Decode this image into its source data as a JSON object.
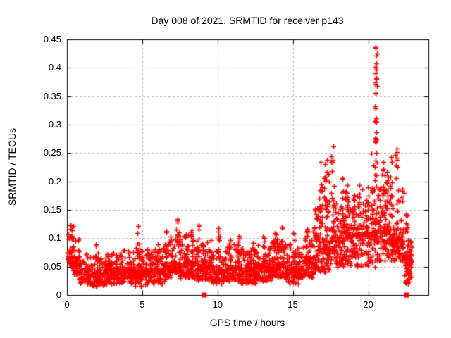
{
  "chart_data": {
    "type": "scatter",
    "title": "Day 008 of 2021, SRMTID for receiver p143",
    "xlabel": "GPS time / hours",
    "ylabel": "SRMTID / TECUs",
    "xlim": [
      0,
      24
    ],
    "ylim": [
      0,
      0.45
    ],
    "xticks": {
      "values": [
        0,
        5,
        10,
        15,
        20
      ],
      "labels": [
        "0",
        "5",
        "10",
        "15",
        "20"
      ]
    },
    "yticks": {
      "values": [
        0,
        0.05,
        0.1,
        0.15,
        0.2,
        0.25,
        0.3,
        0.35,
        0.4,
        0.45
      ],
      "labels": [
        "0",
        "0.05",
        "0.1",
        "0.15",
        "0.2",
        "0.25",
        "0.3",
        "0.35",
        "0.4",
        "0.45"
      ]
    },
    "grid": {
      "show": true,
      "color": "#b9b9b9",
      "dash": [
        3,
        3
      ]
    },
    "axis_color": "#000000",
    "background": "#ffffff",
    "legend": "none",
    "marker": {
      "symbol": "plus",
      "color": "#ff0000",
      "size": 7
    },
    "seed": 20210108,
    "band_profile": [
      {
        "x0": 0.0,
        "x1": 0.3,
        "n": 30,
        "ymin": 0.05,
        "ymode": 0.075,
        "ymax": 0.125
      },
      {
        "x0": 0.3,
        "x1": 0.8,
        "n": 55,
        "ymin": 0.035,
        "ymode": 0.06,
        "ymax": 0.1
      },
      {
        "x0": 0.8,
        "x1": 1.5,
        "n": 75,
        "ymin": 0.02,
        "ymode": 0.045,
        "ymax": 0.08
      },
      {
        "x0": 1.5,
        "x1": 2.5,
        "n": 105,
        "ymin": 0.015,
        "ymode": 0.038,
        "ymax": 0.07
      },
      {
        "x0": 2.5,
        "x1": 3.5,
        "n": 105,
        "ymin": 0.02,
        "ymode": 0.045,
        "ymax": 0.075
      },
      {
        "x0": 3.5,
        "x1": 4.5,
        "n": 105,
        "ymin": 0.02,
        "ymode": 0.042,
        "ymax": 0.08
      },
      {
        "x0": 4.5,
        "x1": 5.5,
        "n": 105,
        "ymin": 0.015,
        "ymode": 0.04,
        "ymax": 0.085
      },
      {
        "x0": 5.5,
        "x1": 6.5,
        "n": 105,
        "ymin": 0.02,
        "ymode": 0.045,
        "ymax": 0.085
      },
      {
        "x0": 6.5,
        "x1": 7.5,
        "n": 105,
        "ymin": 0.03,
        "ymode": 0.055,
        "ymax": 0.105
      },
      {
        "x0": 7.5,
        "x1": 8.5,
        "n": 105,
        "ymin": 0.03,
        "ymode": 0.055,
        "ymax": 0.11
      },
      {
        "x0": 8.5,
        "x1": 9.5,
        "n": 100,
        "ymin": 0.025,
        "ymode": 0.05,
        "ymax": 0.1
      },
      {
        "x0": 9.5,
        "x1": 10.5,
        "n": 100,
        "ymin": 0.02,
        "ymode": 0.042,
        "ymax": 0.08
      },
      {
        "x0": 10.5,
        "x1": 11.5,
        "n": 105,
        "ymin": 0.025,
        "ymode": 0.048,
        "ymax": 0.09
      },
      {
        "x0": 11.5,
        "x1": 12.5,
        "n": 105,
        "ymin": 0.02,
        "ymode": 0.045,
        "ymax": 0.085
      },
      {
        "x0": 12.5,
        "x1": 13.5,
        "n": 105,
        "ymin": 0.025,
        "ymode": 0.05,
        "ymax": 0.09
      },
      {
        "x0": 13.5,
        "x1": 14.5,
        "n": 105,
        "ymin": 0.03,
        "ymode": 0.055,
        "ymax": 0.1
      },
      {
        "x0": 14.5,
        "x1": 15.5,
        "n": 105,
        "ymin": 0.02,
        "ymode": 0.045,
        "ymax": 0.09
      },
      {
        "x0": 15.5,
        "x1": 16.5,
        "n": 105,
        "ymin": 0.03,
        "ymode": 0.06,
        "ymax": 0.12
      },
      {
        "x0": 16.5,
        "x1": 17.5,
        "n": 110,
        "ymin": 0.04,
        "ymode": 0.085,
        "ymax": 0.17
      },
      {
        "x0": 17.5,
        "x1": 18.5,
        "n": 110,
        "ymin": 0.05,
        "ymode": 0.1,
        "ymax": 0.185
      },
      {
        "x0": 18.5,
        "x1": 19.5,
        "n": 110,
        "ymin": 0.05,
        "ymode": 0.105,
        "ymax": 0.185
      },
      {
        "x0": 19.5,
        "x1": 20.5,
        "n": 110,
        "ymin": 0.05,
        "ymode": 0.11,
        "ymax": 0.195
      },
      {
        "x0": 20.5,
        "x1": 21.5,
        "n": 110,
        "ymin": 0.06,
        "ymode": 0.11,
        "ymax": 0.195
      },
      {
        "x0": 21.5,
        "x1": 22.3,
        "n": 90,
        "ymin": 0.06,
        "ymode": 0.1,
        "ymax": 0.18
      },
      {
        "x0": 22.3,
        "x1": 22.9,
        "n": 70,
        "ymin": 0.02,
        "ymode": 0.07,
        "ymax": 0.13
      }
    ],
    "spike_columns": [
      {
        "x": 0.35,
        "base": 0.09,
        "top": 0.13,
        "n": 7
      },
      {
        "x": 2.0,
        "base": 0.055,
        "top": 0.095,
        "n": 5
      },
      {
        "x": 4.75,
        "base": 0.06,
        "top": 0.125,
        "n": 7
      },
      {
        "x": 6.1,
        "base": 0.06,
        "top": 0.1,
        "n": 5
      },
      {
        "x": 6.6,
        "base": 0.065,
        "top": 0.115,
        "n": 6
      },
      {
        "x": 7.35,
        "base": 0.08,
        "top": 0.145,
        "n": 9
      },
      {
        "x": 8.3,
        "base": 0.07,
        "top": 0.12,
        "n": 7
      },
      {
        "x": 8.7,
        "base": 0.07,
        "top": 0.13,
        "n": 8
      },
      {
        "x": 9.5,
        "base": 0.055,
        "top": 0.1,
        "n": 6
      },
      {
        "x": 10.05,
        "base": 0.06,
        "top": 0.13,
        "n": 7
      },
      {
        "x": 10.8,
        "base": 0.055,
        "top": 0.1,
        "n": 5
      },
      {
        "x": 11.4,
        "base": 0.06,
        "top": 0.105,
        "n": 6
      },
      {
        "x": 12.3,
        "base": 0.055,
        "top": 0.1,
        "n": 5
      },
      {
        "x": 13.05,
        "base": 0.06,
        "top": 0.105,
        "n": 6
      },
      {
        "x": 13.8,
        "base": 0.065,
        "top": 0.11,
        "n": 6
      },
      {
        "x": 14.35,
        "base": 0.07,
        "top": 0.142,
        "n": 8
      },
      {
        "x": 15.1,
        "base": 0.06,
        "top": 0.12,
        "n": 7
      },
      {
        "x": 15.9,
        "base": 0.06,
        "top": 0.115,
        "n": 6
      },
      {
        "x": 16.55,
        "base": 0.09,
        "top": 0.175,
        "n": 10
      },
      {
        "x": 16.85,
        "base": 0.1,
        "top": 0.23,
        "n": 12
      },
      {
        "x": 17.15,
        "base": 0.1,
        "top": 0.245,
        "n": 12
      },
      {
        "x": 17.3,
        "base": 0.1,
        "top": 0.24,
        "n": 8
      },
      {
        "x": 17.65,
        "base": 0.11,
        "top": 0.26,
        "n": 12
      },
      {
        "x": 18.3,
        "base": 0.11,
        "top": 0.21,
        "n": 10
      },
      {
        "x": 18.55,
        "base": 0.11,
        "top": 0.2,
        "n": 8
      },
      {
        "x": 19.0,
        "base": 0.11,
        "top": 0.19,
        "n": 8
      },
      {
        "x": 19.4,
        "base": 0.11,
        "top": 0.2,
        "n": 9
      },
      {
        "x": 20.3,
        "base": 0.12,
        "top": 0.255,
        "n": 10
      },
      {
        "x": 20.5,
        "base": 0.12,
        "top": 0.44,
        "n": 26
      },
      {
        "x": 21.0,
        "base": 0.12,
        "top": 0.245,
        "n": 12
      },
      {
        "x": 21.3,
        "base": 0.12,
        "top": 0.22,
        "n": 8
      },
      {
        "x": 21.55,
        "base": 0.12,
        "top": 0.25,
        "n": 9
      },
      {
        "x": 21.9,
        "base": 0.12,
        "top": 0.26,
        "n": 10
      },
      {
        "x": 22.3,
        "base": 0.08,
        "top": 0.2,
        "n": 8
      },
      {
        "x": 22.55,
        "base": 0.07,
        "top": 0.15,
        "n": 8
      }
    ],
    "notable_points": [
      [
        20.47,
        0.435
      ],
      [
        20.53,
        0.421
      ],
      [
        20.49,
        0.401
      ],
      [
        20.55,
        0.397
      ],
      [
        20.5,
        0.39
      ],
      [
        20.51,
        0.374
      ],
      [
        20.47,
        0.355
      ],
      [
        20.5,
        0.329
      ],
      [
        20.52,
        0.311
      ],
      [
        20.55,
        0.286
      ],
      [
        20.47,
        0.276
      ],
      [
        20.53,
        0.251
      ],
      [
        17.67,
        0.261
      ],
      [
        17.66,
        0.238
      ],
      [
        16.82,
        0.234
      ],
      [
        17.28,
        0.238
      ],
      [
        17.31,
        0.212
      ],
      [
        21.88,
        0.258
      ],
      [
        21.9,
        0.238
      ],
      [
        21.95,
        0.226
      ],
      [
        21.84,
        0.228
      ]
    ],
    "zero_markers": {
      "symbol": "filled-square",
      "color": "#ff0000",
      "x": [
        9.12,
        22.57
      ]
    }
  }
}
